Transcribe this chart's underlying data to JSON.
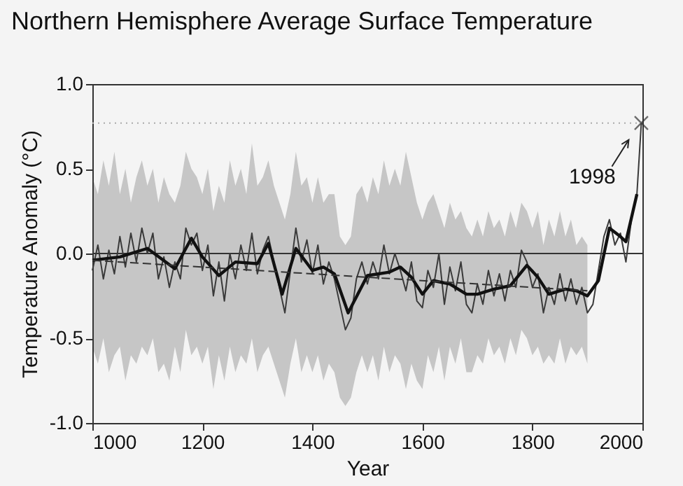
{
  "chart_data": {
    "type": "line",
    "title": "Northern Hemisphere Average Surface Temperature",
    "xlabel": "Year",
    "ylabel": "Temperature Anomaly (°C)",
    "xlim": [
      1000,
      2000
    ],
    "xticks": [
      1000,
      1200,
      1400,
      1600,
      1800,
      2000
    ],
    "ylim": [
      -1,
      1
    ],
    "yticks": [
      {
        "value": -1,
        "label": "-1.0"
      },
      {
        "value": -0.5,
        "label": "-0.5"
      },
      {
        "value": 0,
        "label": "0.0"
      },
      {
        "value": 0.5,
        "label": "0.5"
      },
      {
        "value": 1,
        "label": "1.0"
      }
    ],
    "grid": false,
    "ref_lines": [
      {
        "axis": "y",
        "value": 0,
        "color": "#333333",
        "line_style": "solid"
      },
      {
        "axis": "y",
        "value": 0.77,
        "color": "#aaaaaa",
        "line_style": "dotted"
      }
    ],
    "annotations": [
      {
        "text": "1998",
        "x": 1998,
        "y": 0.77
      }
    ],
    "series": [
      {
        "color": "#3a3a3a",
        "x": [
          1000,
          1010,
          1020,
          1030,
          1040,
          1050,
          1060,
          1070,
          1080,
          1090,
          1100,
          1110,
          1120,
          1130,
          1140,
          1150,
          1160,
          1170,
          1180,
          1190,
          1200,
          1210,
          1220,
          1230,
          1240,
          1250,
          1260,
          1270,
          1280,
          1290,
          1300,
          1310,
          1320,
          1330,
          1340,
          1350,
          1360,
          1370,
          1380,
          1390,
          1400,
          1410,
          1420,
          1430,
          1440,
          1450,
          1460,
          1470,
          1480,
          1490,
          1500,
          1510,
          1520,
          1530,
          1540,
          1550,
          1560,
          1570,
          1580,
          1590,
          1600,
          1610,
          1620,
          1630,
          1640,
          1650,
          1660,
          1670,
          1680,
          1690,
          1700,
          1710,
          1720,
          1730,
          1740,
          1750,
          1760,
          1770,
          1780,
          1790,
          1800,
          1810,
          1820,
          1830,
          1840,
          1850,
          1860,
          1870,
          1880,
          1890,
          1900,
          1910,
          1920,
          1930,
          1940,
          1950,
          1960,
          1970,
          1980,
          1990,
          1998
        ],
        "values": [
          -0.1,
          0.05,
          -0.15,
          0.02,
          -0.12,
          0.1,
          -0.08,
          0.12,
          -0.05,
          0.15,
          0.0,
          0.12,
          -0.15,
          -0.02,
          -0.2,
          -0.05,
          -0.15,
          0.15,
          0.05,
          0.12,
          -0.1,
          0.05,
          -0.25,
          -0.05,
          -0.28,
          0.0,
          -0.15,
          0.05,
          -0.1,
          0.12,
          -0.12,
          0.02,
          0.1,
          -0.05,
          -0.2,
          -0.35,
          -0.1,
          0.15,
          -0.05,
          0.08,
          -0.12,
          0.05,
          -0.18,
          -0.05,
          -0.15,
          -0.3,
          -0.45,
          -0.38,
          -0.15,
          -0.05,
          -0.18,
          -0.05,
          -0.15,
          0.05,
          -0.12,
          0.0,
          -0.1,
          -0.22,
          -0.05,
          -0.28,
          -0.32,
          -0.1,
          -0.2,
          0.0,
          -0.3,
          -0.08,
          -0.22,
          -0.05,
          -0.3,
          -0.35,
          -0.18,
          -0.3,
          -0.1,
          -0.25,
          -0.12,
          -0.28,
          -0.1,
          -0.2,
          0.02,
          -0.05,
          -0.2,
          -0.12,
          -0.35,
          -0.2,
          -0.3,
          -0.12,
          -0.28,
          -0.15,
          -0.3,
          -0.2,
          -0.35,
          -0.3,
          -0.1,
          0.1,
          0.2,
          0.05,
          0.12,
          -0.05,
          0.2,
          0.35,
          0.77
        ],
        "upper": [
          0.45,
          0.35,
          0.55,
          0.4,
          0.6,
          0.35,
          0.5,
          0.3,
          0.45,
          0.55,
          0.4,
          0.5,
          0.3,
          0.45,
          0.35,
          0.3,
          0.4,
          0.6,
          0.5,
          0.45,
          0.35,
          0.5,
          0.25,
          0.4,
          0.3,
          0.55,
          0.4,
          0.5,
          0.35,
          0.65,
          0.4,
          0.45,
          0.55,
          0.4,
          0.3,
          0.2,
          0.35,
          0.6,
          0.4,
          0.45,
          0.3,
          0.45,
          0.3,
          0.35,
          0.35,
          0.1,
          0.05,
          0.1,
          0.35,
          0.4,
          0.3,
          0.45,
          0.35,
          0.55,
          0.4,
          0.5,
          0.4,
          0.6,
          0.45,
          0.3,
          0.2,
          0.3,
          0.35,
          0.25,
          0.15,
          0.3,
          0.2,
          0.25,
          0.15,
          0.1,
          0.2,
          0.1,
          0.25,
          0.15,
          0.2,
          0.1,
          0.25,
          0.15,
          0.3,
          0.25,
          0.15,
          0.25,
          0.05,
          0.2,
          0.1,
          0.25,
          0.1,
          0.2,
          0.05,
          0.1,
          0.05,
          null,
          null,
          null,
          null,
          null,
          null,
          null,
          null,
          null,
          null
        ],
        "lower": [
          -0.55,
          -0.65,
          -0.5,
          -0.7,
          -0.6,
          -0.55,
          -0.75,
          -0.6,
          -0.65,
          -0.55,
          -0.6,
          -0.5,
          -0.7,
          -0.65,
          -0.75,
          -0.55,
          -0.7,
          -0.45,
          -0.6,
          -0.55,
          -0.65,
          -0.55,
          -0.8,
          -0.6,
          -0.75,
          -0.55,
          -0.7,
          -0.6,
          -0.65,
          -0.5,
          -0.7,
          -0.6,
          -0.55,
          -0.65,
          -0.75,
          -0.85,
          -0.65,
          -0.5,
          -0.7,
          -0.6,
          -0.7,
          -0.6,
          -0.75,
          -0.65,
          -0.7,
          -0.85,
          -0.9,
          -0.85,
          -0.7,
          -0.6,
          -0.7,
          -0.6,
          -0.75,
          -0.55,
          -0.7,
          -0.6,
          -0.65,
          -0.8,
          -0.65,
          -0.75,
          -0.8,
          -0.6,
          -0.7,
          -0.55,
          -0.75,
          -0.55,
          -0.65,
          -0.5,
          -0.7,
          -0.7,
          -0.6,
          -0.65,
          -0.5,
          -0.6,
          -0.55,
          -0.65,
          -0.5,
          -0.6,
          -0.45,
          -0.5,
          -0.6,
          -0.55,
          -0.65,
          -0.6,
          -0.65,
          -0.5,
          -0.65,
          -0.55,
          -0.6,
          -0.55,
          -0.65,
          null,
          null,
          null,
          null,
          null,
          null,
          null,
          null,
          null,
          null
        ]
      },
      {
        "color": "#111111",
        "x": [
          1000,
          1050,
          1100,
          1150,
          1180,
          1200,
          1230,
          1260,
          1300,
          1320,
          1345,
          1370,
          1400,
          1420,
          1440,
          1465,
          1500,
          1540,
          1560,
          1580,
          1600,
          1620,
          1650,
          1680,
          1700,
          1730,
          1760,
          1790,
          1810,
          1830,
          1860,
          1880,
          1900,
          1920,
          1940,
          1960,
          1970,
          1980,
          1990
        ],
        "values": [
          -0.04,
          -0.02,
          0.03,
          -0.09,
          0.09,
          -0.02,
          -0.13,
          -0.05,
          -0.06,
          0.06,
          -0.24,
          0.03,
          -0.1,
          -0.08,
          -0.12,
          -0.35,
          -0.13,
          -0.11,
          -0.08,
          -0.14,
          -0.24,
          -0.16,
          -0.18,
          -0.24,
          -0.24,
          -0.21,
          -0.19,
          -0.07,
          -0.14,
          -0.24,
          -0.21,
          -0.22,
          -0.25,
          -0.16,
          0.15,
          0.1,
          0.07,
          0.21,
          0.35
        ]
      },
      {
        "color": "#333333",
        "line_style": "dashed",
        "x": [
          1000,
          1900
        ],
        "values": [
          -0.04,
          -0.22
        ]
      },
      {
        "type": "scatter",
        "color": "#333333",
        "marker": "cross",
        "x": [
          1998
        ],
        "values": [
          0.77
        ]
      }
    ]
  }
}
